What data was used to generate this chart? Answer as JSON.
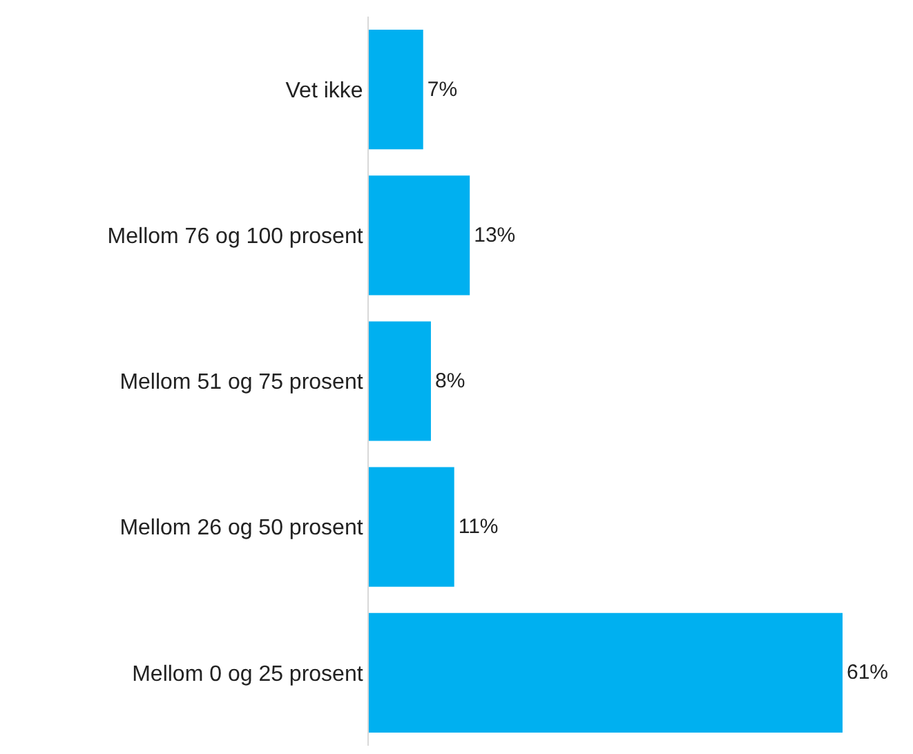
{
  "chart_data": {
    "type": "bar",
    "orientation": "horizontal",
    "categories": [
      "Vet ikke",
      "Mellom 76 og 100 prosent",
      "Mellom 51 og 75 prosent",
      "Mellom 26 og 50 prosent",
      "Mellom 0 og 25 prosent"
    ],
    "values": [
      7,
      13,
      8,
      11,
      61
    ],
    "value_labels": [
      "7%",
      "13%",
      "8%",
      "11%",
      "61%"
    ],
    "color": "#00b0f0",
    "xlim": [
      0,
      61
    ]
  }
}
